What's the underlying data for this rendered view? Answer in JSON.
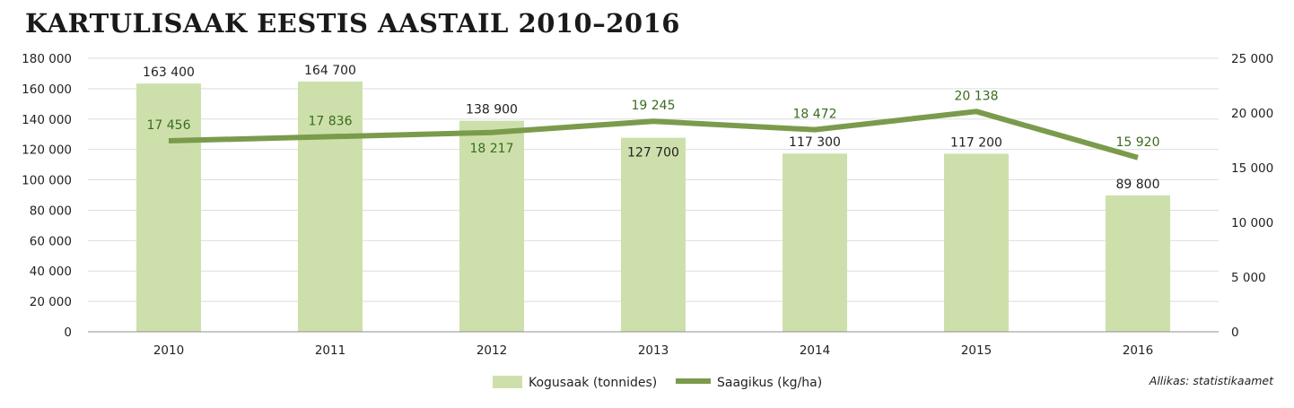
{
  "colors": {
    "bar": "#cde0ab",
    "line": "#7a9b4b",
    "line_label": "#3a6b20",
    "grid": "#dedede"
  },
  "source_note": "Allikas: statistikaamet",
  "chart_data": {
    "type": "bar",
    "title": "KARTULISAAK EESTIS AASTAIL 2010–2016",
    "categories": [
      "2010",
      "2011",
      "2012",
      "2013",
      "2014",
      "2015",
      "2016"
    ],
    "series": [
      {
        "name": "Kogusaak (tonnides)",
        "type": "bar",
        "axis": "left",
        "values": [
          163400,
          164700,
          138900,
          127700,
          117300,
          117200,
          89800
        ],
        "labels": [
          "163 400",
          "164 700",
          "138 900",
          "127 700",
          "117 300",
          "117 200",
          "89 800"
        ]
      },
      {
        "name": "Saagikus (kg/ha)",
        "type": "line",
        "axis": "right",
        "values": [
          17456,
          17836,
          18217,
          19245,
          18472,
          20138,
          15920
        ],
        "labels": [
          "17 456",
          "17 836",
          "18 217",
          "19 245",
          "18 472",
          "20 138",
          "15 920"
        ]
      }
    ],
    "y_left": {
      "range": [
        0,
        180000
      ],
      "ticks": [
        0,
        20000,
        40000,
        60000,
        80000,
        100000,
        120000,
        140000,
        160000,
        180000
      ],
      "tick_labels": [
        "0",
        "20 000",
        "40 000",
        "60 000",
        "80 000",
        "100 000",
        "120 000",
        "140 000",
        "160 000",
        "180 000"
      ]
    },
    "y_right": {
      "range": [
        0,
        25000
      ],
      "ticks": [
        0,
        5000,
        10000,
        15000,
        20000,
        25000
      ],
      "tick_labels": [
        "0",
        "5 000",
        "10 000",
        "15 000",
        "20 000",
        "25 000"
      ]
    },
    "grid": true,
    "legend": "bottom"
  }
}
